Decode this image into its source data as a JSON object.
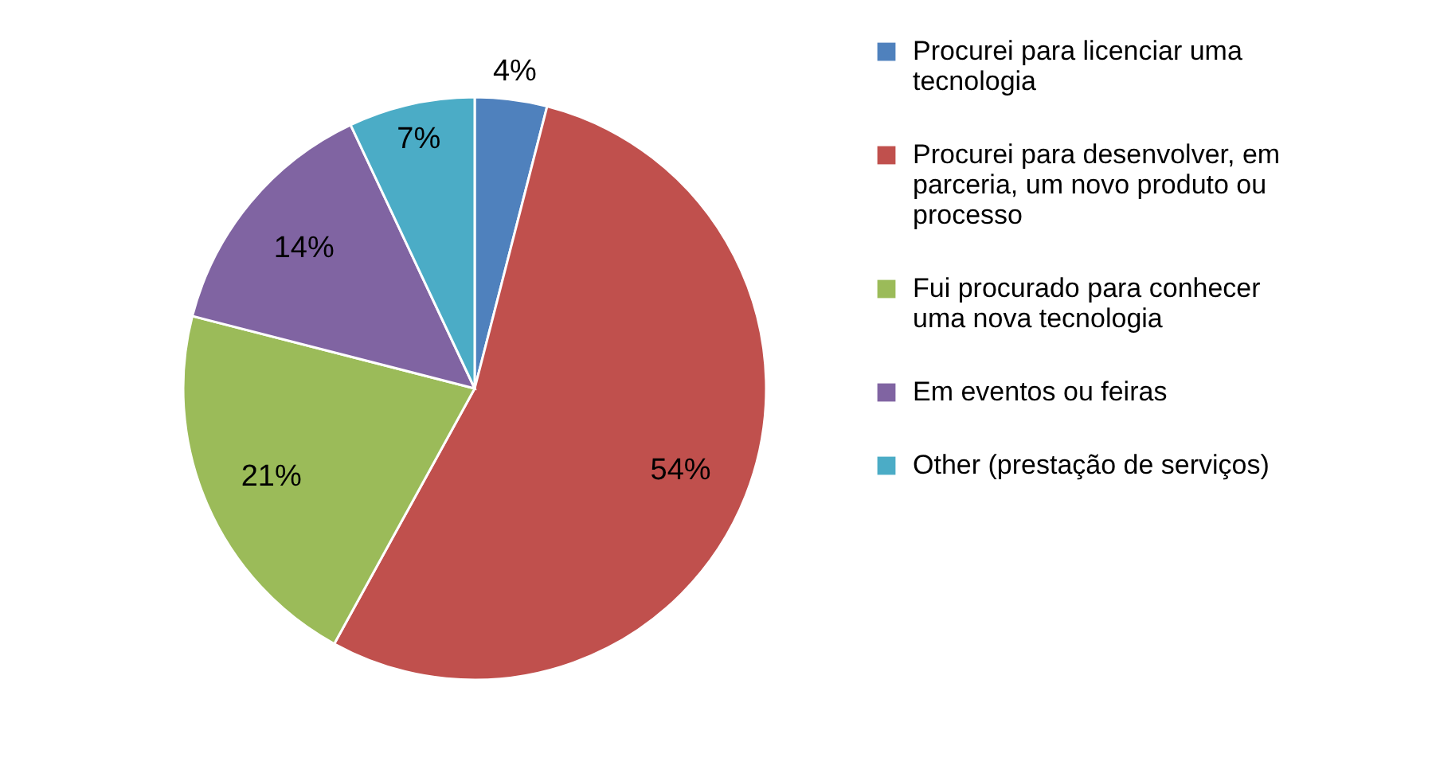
{
  "chart_data": {
    "type": "pie",
    "categories": [
      "Procurei para licenciar uma tecnologia",
      "Procurei para desenvolver, em parceria, um novo produto ou processo",
      "Fui procurado para conhecer uma nova tecnologia",
      "Em eventos ou feiras",
      "Other (prestação de serviços)"
    ],
    "values": [
      4,
      54,
      21,
      14,
      7
    ],
    "colors": [
      "#4f81bd",
      "#c0504d",
      "#9bbb59",
      "#8064a2",
      "#4bacc6"
    ],
    "value_labels": [
      "4%",
      "54%",
      "21%",
      "14%",
      "7%"
    ],
    "legend": "right"
  }
}
